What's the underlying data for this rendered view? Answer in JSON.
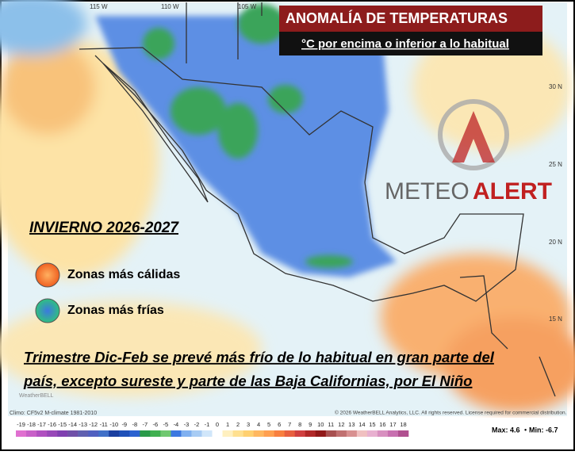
{
  "header": {
    "title": "ANOMALÍA DE TEMPERATURAS",
    "subtitle": "°C por encima o inferior a lo habitual"
  },
  "logo": {
    "part1": "METEO",
    "part2": "ALERT"
  },
  "season": "INVIERNO 2026-2027",
  "legend": {
    "warm": "Zonas más cálidas",
    "cold": "Zonas más frías"
  },
  "caption": [
    "Trimestre Dic-Feb se prevé más frío de lo habitual en gran parte del",
    "país, excepto sureste y parte de las Baja Californias, por El Niño"
  ],
  "grid_labels": {
    "lon": [
      "115 W",
      "110 W",
      "105 W"
    ],
    "lat": [
      "30 N",
      "25 N",
      "20 N",
      "15 N"
    ]
  },
  "footer": {
    "climo": "Climo: CF5v2 M-climate 1981-2010",
    "copyright": "© 2026 WeatherBELL Analytics, LLC. All rights reserved. License required for commercial distribution.",
    "max": "Max: 4.6",
    "min": "Min: -6.7",
    "watermark": "WeatherBELL"
  },
  "colorbar": {
    "ticks": [
      -19,
      -18,
      -17,
      -16,
      -15,
      -14,
      -13,
      -12,
      -11,
      -10,
      -9,
      -8,
      -7,
      -6,
      -5,
      -4,
      -3,
      -2,
      -1,
      0,
      1,
      2,
      3,
      4,
      5,
      6,
      7,
      8,
      9,
      10,
      11,
      12,
      13,
      14,
      15,
      16,
      17,
      18
    ],
    "colors": [
      "#e070d0",
      "#c860c8",
      "#b050c0",
      "#9848b8",
      "#8040b0",
      "#7050a8",
      "#6060b0",
      "#5060c0",
      "#4070c8",
      "#1a3fa0",
      "#1f50b8",
      "#2a62d0",
      "#2a9a4a",
      "#40b050",
      "#70c870",
      "#3c78e0",
      "#80b0f0",
      "#a8ccf4",
      "#d0e6fa",
      "#ffffff",
      "#fff0c0",
      "#ffe090",
      "#ffd070",
      "#ffb860",
      "#ffa050",
      "#f88040",
      "#e86040",
      "#d04040",
      "#b02828",
      "#901818",
      "#a85050",
      "#c07070",
      "#d89090",
      "#f0c0c0",
      "#e8b0d0",
      "#d890c0",
      "#c870b0",
      "#b05090"
    ]
  }
}
